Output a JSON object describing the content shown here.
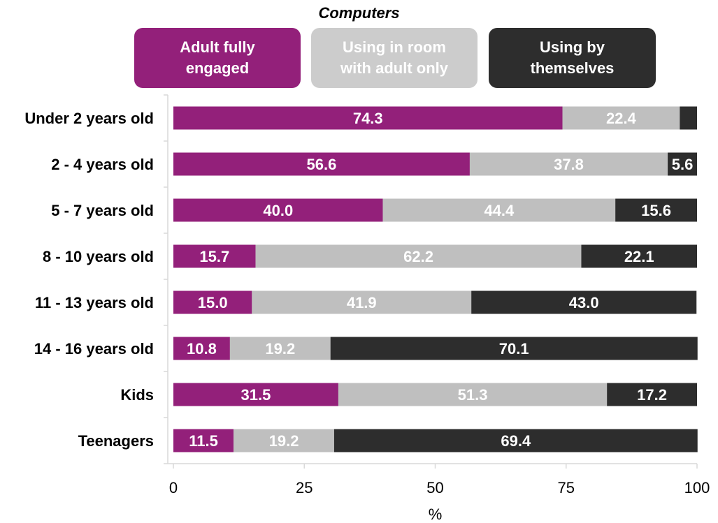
{
  "chart_data": {
    "type": "bar",
    "orientation": "horizontal",
    "stacked": true,
    "title": "Computers",
    "xlabel": "%",
    "ylabel": "",
    "xlim": [
      0,
      100
    ],
    "xticks": [
      0,
      25,
      50,
      75,
      100
    ],
    "grid": false,
    "legend_placement": "top",
    "categories": [
      "Under 2 years old",
      "2 - 4 years old",
      "5 - 7 years old",
      "8 - 10 years old",
      "11 - 13 years old",
      "14 - 16 years old",
      "Kids",
      "Teenagers"
    ],
    "series": [
      {
        "name": "Adult fully engaged",
        "color": "#93207a",
        "label_color": "#ffffff",
        "values": [
          74.3,
          56.6,
          40.0,
          15.7,
          15.0,
          10.8,
          31.5,
          11.5
        ],
        "labels": [
          "74.3",
          "56.6",
          "40.0",
          "15.7",
          "15.0",
          "10.8",
          "31.5",
          "11.5"
        ]
      },
      {
        "name": "Using in room with adult only",
        "color": "#bfbfbf",
        "label_color": "#ffffff",
        "values": [
          22.4,
          37.8,
          44.4,
          62.2,
          41.9,
          19.2,
          51.3,
          19.2
        ],
        "labels": [
          "22.4",
          "37.8",
          "44.4",
          "62.2",
          "41.9",
          "19.2",
          "51.3",
          "19.2"
        ]
      },
      {
        "name": "Using by themselves",
        "color": "#2d2d2d",
        "label_color": "#ffffff",
        "values": [
          3.3,
          5.6,
          15.6,
          22.1,
          43.0,
          70.1,
          17.2,
          69.4
        ],
        "labels": [
          "",
          "5.6",
          "15.6",
          "22.1",
          "43.0",
          "70.1",
          "17.2",
          "69.4"
        ]
      }
    ]
  },
  "legend": [
    {
      "line1": "Adult fully",
      "line2": "engaged",
      "bg": "#93207a",
      "fg": "#ffffff"
    },
    {
      "line1": "Using in room",
      "line2": "with adult only",
      "bg": "#cccccc",
      "fg": "#ffffff"
    },
    {
      "line1": "Using by",
      "line2": "themselves",
      "bg": "#2d2d2d",
      "fg": "#ffffff"
    }
  ]
}
